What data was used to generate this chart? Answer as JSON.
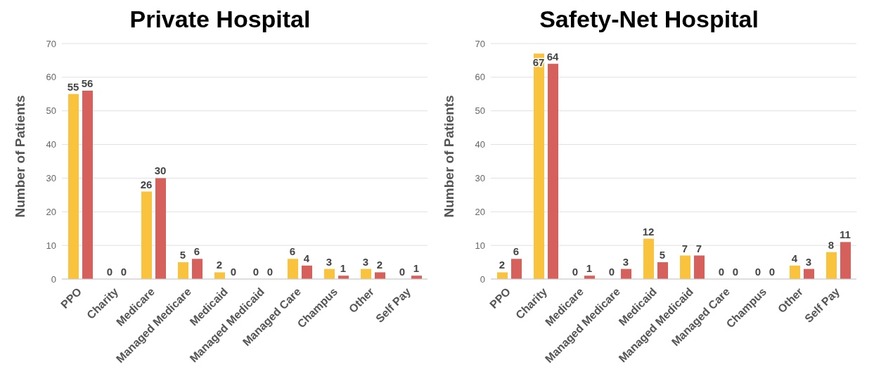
{
  "chart_data": [
    {
      "type": "bar",
      "title": "Private Hospital",
      "ylabel": "Number of Patients",
      "categories": [
        "PPO",
        "Charity",
        "Medicare",
        "Managed Medicare",
        "Medicaid",
        "Managed Medicaid",
        "Managed Care",
        "Champus",
        "Other",
        "Self Pay"
      ],
      "series": [
        {
          "color": "#f9c33e",
          "values": [
            55,
            0,
            26,
            5,
            2,
            0,
            6,
            3,
            3,
            0
          ]
        },
        {
          "color": "#d6605b",
          "values": [
            56,
            0,
            30,
            6,
            0,
            0,
            4,
            1,
            2,
            1
          ]
        }
      ],
      "ylim": [
        0,
        70
      ],
      "yticks": [
        0,
        10,
        20,
        30,
        40,
        50,
        60,
        70
      ],
      "grid": "y",
      "data_labels": true,
      "legend": false
    },
    {
      "type": "bar",
      "title": "Safety-Net Hospital",
      "ylabel": "Number of Patients",
      "categories": [
        "PPO",
        "Charity",
        "Medicare",
        "Managed Medicare",
        "Medicaid",
        "Managed Medicaid",
        "Managed Care",
        "Champus",
        "Other",
        "Self Pay"
      ],
      "series": [
        {
          "color": "#f9c33e",
          "values": [
            2,
            67,
            0,
            0,
            12,
            7,
            0,
            0,
            4,
            8
          ]
        },
        {
          "color": "#d6605b",
          "values": [
            6,
            64,
            1,
            3,
            5,
            7,
            0,
            0,
            3,
            11
          ]
        }
      ],
      "ylim": [
        0,
        70
      ],
      "yticks": [
        0,
        10,
        20,
        30,
        40,
        50,
        60,
        70
      ],
      "grid": "y",
      "data_labels": true,
      "legend": false
    }
  ]
}
